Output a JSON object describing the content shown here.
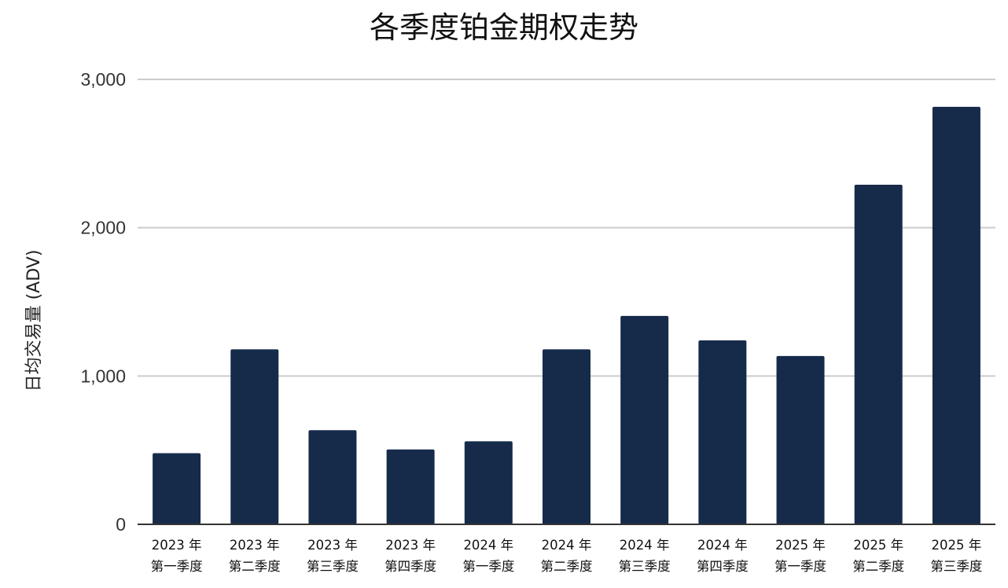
{
  "chart_data": {
    "type": "bar",
    "title": "各季度铂金期权走势",
    "xlabel": "",
    "ylabel": "日均交易量 (ADV)",
    "ylim": [
      0,
      3000
    ],
    "yticks": [
      0,
      1000,
      2000,
      3000
    ],
    "ytick_labels": [
      "0",
      "1,000",
      "2,000",
      "3,000"
    ],
    "grid": true,
    "legend": "none",
    "bar_color": "#162b4a",
    "gridline_color": "#cccccc",
    "axis_color": "#333333",
    "categories": [
      [
        "2023 年",
        "第一季度"
      ],
      [
        "2023 年",
        "第二季度"
      ],
      [
        "2023 年",
        "第三季度"
      ],
      [
        "2023 年",
        "第四季度"
      ],
      [
        "2024 年",
        "第一季度"
      ],
      [
        "2024 年",
        "第二季度"
      ],
      [
        "2024 年",
        "第三季度"
      ],
      [
        "2024 年",
        "第四季度"
      ],
      [
        "2025 年",
        "第一季度"
      ],
      [
        "2025 年",
        "第二季度"
      ],
      [
        "2025 年",
        "第三季度"
      ]
    ],
    "values": [
      480,
      1180,
      635,
      505,
      560,
      1180,
      1405,
      1240,
      1135,
      2290,
      2815
    ]
  }
}
